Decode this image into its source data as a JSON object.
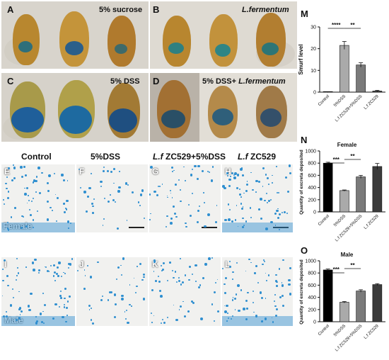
{
  "panels": {
    "A": {
      "label": "A",
      "title": "5% sucrose"
    },
    "B": {
      "label": "B",
      "title": "L.fermentum"
    },
    "C": {
      "label": "C",
      "title": "5% DSS"
    },
    "D": {
      "label": "D",
      "title_prefix": "5% DSS+ ",
      "title_italic": "L.fermentum"
    },
    "E": {
      "label": "E"
    },
    "F": {
      "label": "F"
    },
    "G": {
      "label": "G"
    },
    "H": {
      "label": "H"
    },
    "I": {
      "label": "I"
    },
    "J": {
      "label": "J"
    },
    "K": {
      "label": "K"
    },
    "L": {
      "label": "L"
    },
    "M": {
      "label": "M"
    },
    "N": {
      "label": "N"
    },
    "O": {
      "label": "O"
    }
  },
  "columns": {
    "control": "Control",
    "dss": "5%DSS",
    "lf_dss_italic": "L.f",
    "lf_dss_rest": " ZC529+5%DSS",
    "lf_italic": "L.f",
    "lf_rest": " ZC529"
  },
  "rows": {
    "female": "Female",
    "male": "Male"
  },
  "colors": {
    "control_bar": "#000000",
    "dss_bar": "#aaaaaa",
    "combo_bar": "#7a7a7a",
    "lf_bar": "#3c3c3c",
    "dye": "#2f8fd0"
  },
  "chart_data": [
    {
      "id": "M",
      "type": "bar",
      "categories": [
        "Control",
        "5%DSS",
        "L.f ZC529+5%DSS",
        "L.f ZC529"
      ],
      "values": [
        0,
        21.5,
        12.5,
        0.5
      ],
      "errors": [
        0.2,
        1.8,
        1.0,
        0.3
      ],
      "ylabel": "Smurf level",
      "ylim": [
        0,
        30
      ],
      "yticks": [
        0,
        10,
        20,
        30
      ],
      "significance": [
        {
          "text": "****",
          "from": 0,
          "to": 1
        },
        {
          "text": "**",
          "from": 1,
          "to": 2
        }
      ]
    },
    {
      "id": "N",
      "type": "bar",
      "title": "Female",
      "categories": [
        "Control",
        "5%DSS",
        "L.f ZC529+5%DSS",
        "L.f ZC529"
      ],
      "values": [
        800,
        350,
        575,
        745
      ],
      "errors": [
        15,
        10,
        25,
        50
      ],
      "ylabel": "Quantity of excreta deposited",
      "ylim": [
        0,
        1000
      ],
      "yticks": [
        0,
        200,
        400,
        600,
        800,
        1000
      ],
      "significance": [
        {
          "text": "***",
          "from": 0,
          "to": 1
        },
        {
          "text": "**",
          "from": 1,
          "to": 2
        }
      ]
    },
    {
      "id": "O",
      "type": "bar",
      "title": "Male",
      "categories": [
        "Control",
        "5%DSS",
        "L.f ZC529+5%DSS",
        "L.f ZC529"
      ],
      "values": [
        850,
        320,
        505,
        610
      ],
      "errors": [
        15,
        12,
        20,
        15
      ],
      "ylabel": "Quantity of excreta deposited",
      "ylim": [
        0,
        1000
      ],
      "yticks": [
        0,
        200,
        400,
        600,
        800,
        1000
      ],
      "significance": [
        {
          "text": "***",
          "from": 0,
          "to": 1
        },
        {
          "text": "**",
          "from": 1,
          "to": 2
        }
      ]
    }
  ]
}
